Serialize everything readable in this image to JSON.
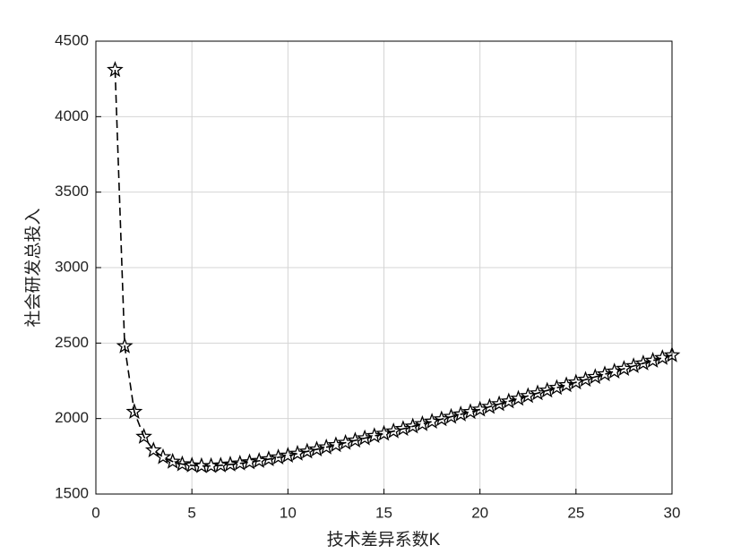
{
  "chart_data": {
    "type": "line",
    "xlabel": "技术差异系数K",
    "ylabel": "社会研发总投入",
    "x": [
      1,
      1.5,
      2,
      2.5,
      3,
      3.5,
      4,
      4.5,
      5,
      5.5,
      6,
      6.5,
      7,
      7.5,
      8,
      8.5,
      9,
      9.5,
      10,
      10.5,
      11,
      11.5,
      12,
      12.5,
      13,
      13.5,
      14,
      14.5,
      15,
      15.5,
      16,
      16.5,
      17,
      17.5,
      18,
      18.5,
      19,
      19.5,
      20,
      20.5,
      21,
      21.5,
      22,
      22.5,
      23,
      23.5,
      24,
      24.5,
      25,
      25.5,
      26,
      26.5,
      27,
      27.5,
      28,
      28.5,
      29,
      29.5,
      30
    ],
    "series": [
      {
        "color": "#000000",
        "marker": "star",
        "linestyle": "dashed",
        "values": [
          4310,
          2480,
          2045,
          1880,
          1790,
          1745,
          1715,
          1698,
          1690,
          1686,
          1686,
          1690,
          1696,
          1703,
          1711,
          1720,
          1731,
          1743,
          1755,
          1768,
          1782,
          1796,
          1810,
          1825,
          1840,
          1855,
          1870,
          1885,
          1900,
          1916,
          1932,
          1948,
          1964,
          1980,
          1996,
          2012,
          2028,
          2044,
          2060,
          2078,
          2096,
          2114,
          2132,
          2150,
          2168,
          2186,
          2204,
          2222,
          2240,
          2258,
          2276,
          2294,
          2312,
          2330,
          2348,
          2366,
          2384,
          2402,
          2420
        ]
      }
    ],
    "xlim": [
      0,
      30
    ],
    "xticks": [
      0,
      5,
      10,
      15,
      20,
      25,
      30
    ],
    "ylim": [
      1500,
      4500
    ],
    "yticks": [
      1500,
      2000,
      2500,
      3000,
      3500,
      4000,
      4500
    ],
    "grid": true
  }
}
